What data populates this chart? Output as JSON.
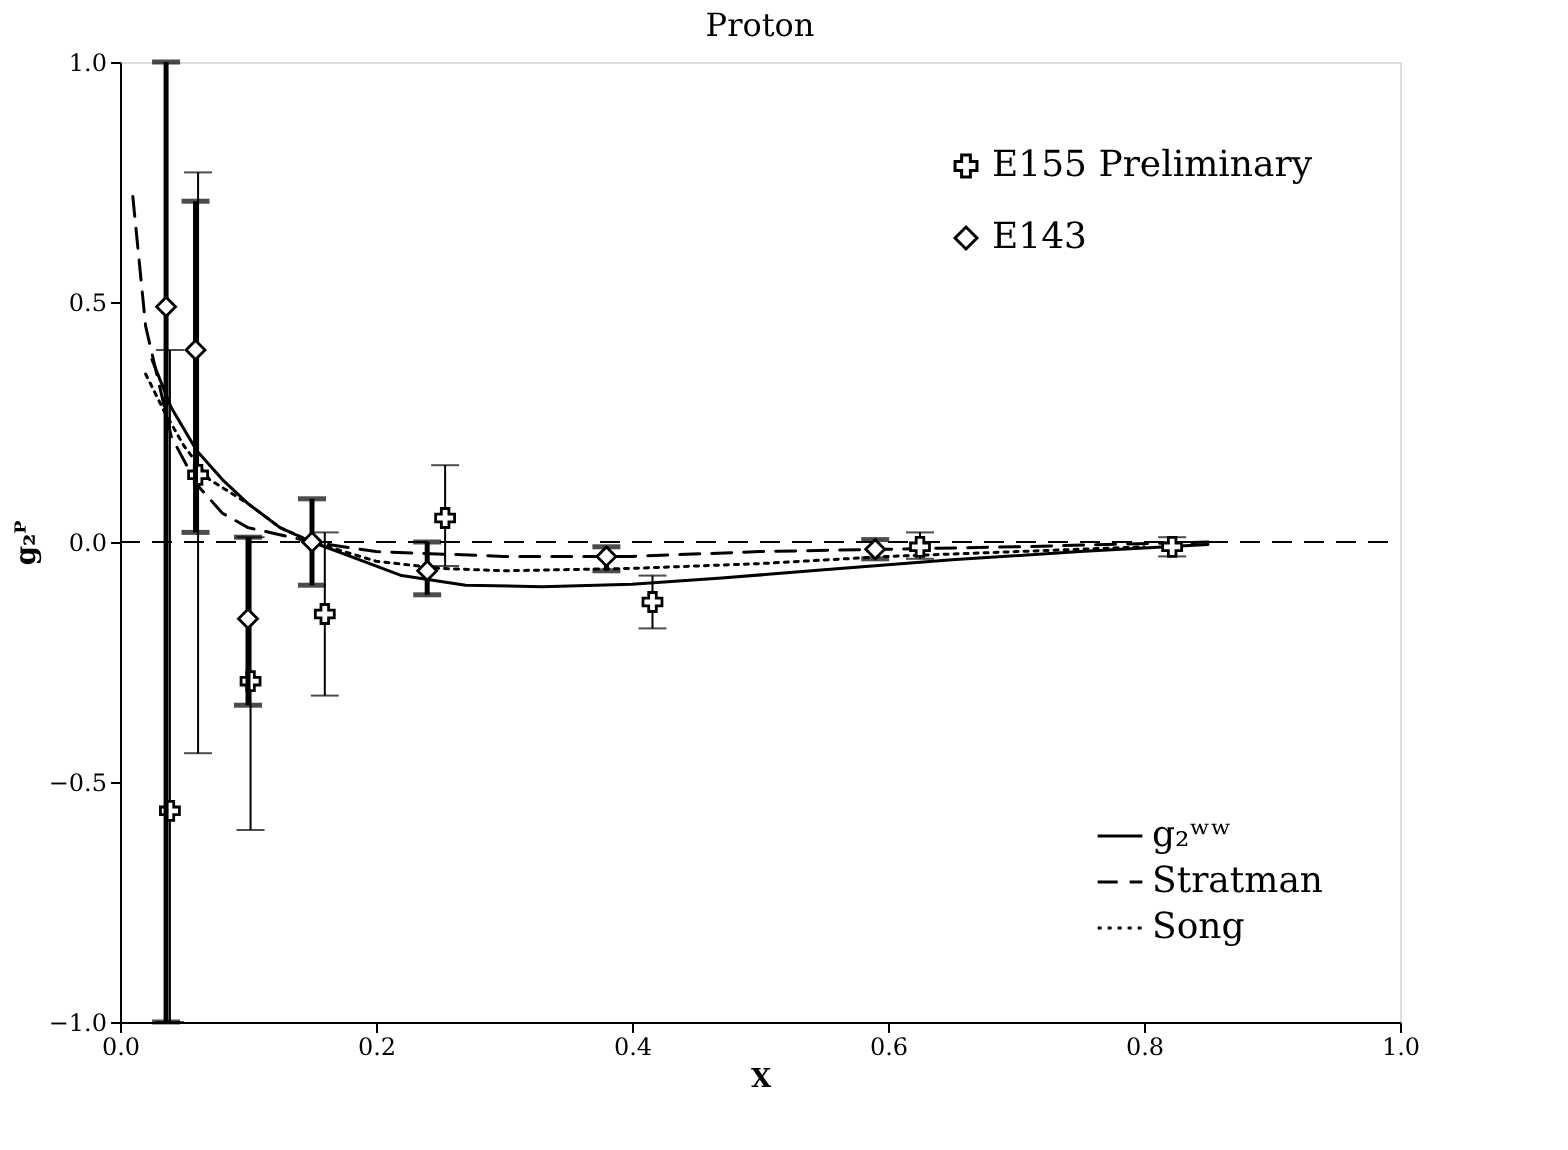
{
  "chart_data": {
    "type": "scatter",
    "title": "Proton",
    "xlabel": "X",
    "ylabel": "g₂ᴾ",
    "xlim": [
      0,
      1
    ],
    "ylim": [
      -1,
      1
    ],
    "xticks": [
      {
        "value": 0,
        "label": "0.0"
      },
      {
        "value": 0.2,
        "label": "0.2"
      },
      {
        "value": 0.4,
        "label": "0.4"
      },
      {
        "value": 0.6,
        "label": "0.6"
      },
      {
        "value": 0.8,
        "label": "0.8"
      },
      {
        "value": 1,
        "label": "1.0"
      }
    ],
    "yticks": [
      {
        "value": -1,
        "label": "−1.0"
      },
      {
        "value": -0.5,
        "label": "−0.5"
      },
      {
        "value": 0,
        "label": "0.0"
      },
      {
        "value": 0.5,
        "label": "0.5"
      },
      {
        "value": 1,
        "label": "1.0"
      }
    ],
    "grid": false,
    "legend": "right",
    "ref_lines": [
      {
        "axis": "y",
        "value": 0,
        "color": "#000000",
        "line_style": "dashed"
      }
    ],
    "series": [
      {
        "name": "E155 Preliminary",
        "marker": "cross",
        "color": "#000000",
        "x": [
          0.039,
          0.061,
          0.102,
          0.16,
          0.254,
          0.416,
          0.625,
          0.822
        ],
        "values": [
          -0.56,
          0.14,
          -0.29,
          -0.15,
          0.05,
          -0.125,
          -0.01,
          -0.01
        ],
        "errors": [
          [
            -1.0,
            0.4
          ],
          [
            -0.44,
            0.77
          ],
          [
            -0.6,
            0.01
          ],
          [
            -0.32,
            0.02
          ],
          [
            -0.05,
            0.16
          ],
          [
            -0.18,
            -0.07
          ],
          [
            -0.035,
            0.02
          ],
          [
            -0.03,
            0.01
          ]
        ]
      },
      {
        "name": "E143",
        "marker": "diamond",
        "color": "#000000",
        "x": [
          0.036,
          0.059,
          0.1,
          0.15,
          0.24,
          0.38,
          0.59
        ],
        "values": [
          0.49,
          0.4,
          -0.16,
          0.0,
          -0.06,
          -0.03,
          -0.015
        ],
        "errors": [
          [
            -1.0,
            1.0
          ],
          [
            0.02,
            0.71
          ],
          [
            -0.34,
            0.01
          ],
          [
            -0.09,
            0.09
          ],
          [
            -0.11,
            0.0
          ],
          [
            -0.06,
            -0.01
          ],
          [
            -0.035,
            0.005
          ]
        ]
      },
      {
        "name": "g₂ʷʷ",
        "type": "line",
        "line_style": "solid",
        "color": "#000000",
        "x": [
          0.025,
          0.04,
          0.06,
          0.08,
          0.1,
          0.125,
          0.15,
          0.18,
          0.22,
          0.27,
          0.33,
          0.4,
          0.47,
          0.55,
          0.65,
          0.75,
          0.85
        ],
        "values": [
          0.38,
          0.28,
          0.19,
          0.13,
          0.08,
          0.03,
          0.0,
          -0.03,
          -0.07,
          -0.09,
          -0.093,
          -0.088,
          -0.075,
          -0.058,
          -0.037,
          -0.02,
          -0.005
        ]
      },
      {
        "name": "Stratman",
        "type": "line",
        "line_style": "dashed",
        "color": "#000000",
        "x": [
          0.01,
          0.02,
          0.04,
          0.06,
          0.08,
          0.1,
          0.15,
          0.2,
          0.3,
          0.4,
          0.5,
          0.6,
          0.7,
          0.85
        ],
        "values": [
          0.72,
          0.45,
          0.22,
          0.12,
          0.06,
          0.03,
          0.0,
          -0.02,
          -0.03,
          -0.03,
          -0.02,
          -0.015,
          -0.01,
          0.0
        ]
      },
      {
        "name": "Song",
        "type": "line",
        "line_style": "dotted",
        "color": "#000000",
        "x": [
          0.02,
          0.035,
          0.05,
          0.07,
          0.1,
          0.125,
          0.15,
          0.2,
          0.25,
          0.3,
          0.4,
          0.5,
          0.6,
          0.7,
          0.8
        ],
        "values": [
          0.35,
          0.27,
          0.2,
          0.13,
          0.08,
          0.03,
          0.0,
          -0.04,
          -0.055,
          -0.06,
          -0.055,
          -0.045,
          -0.03,
          -0.02,
          -0.01
        ]
      }
    ]
  }
}
